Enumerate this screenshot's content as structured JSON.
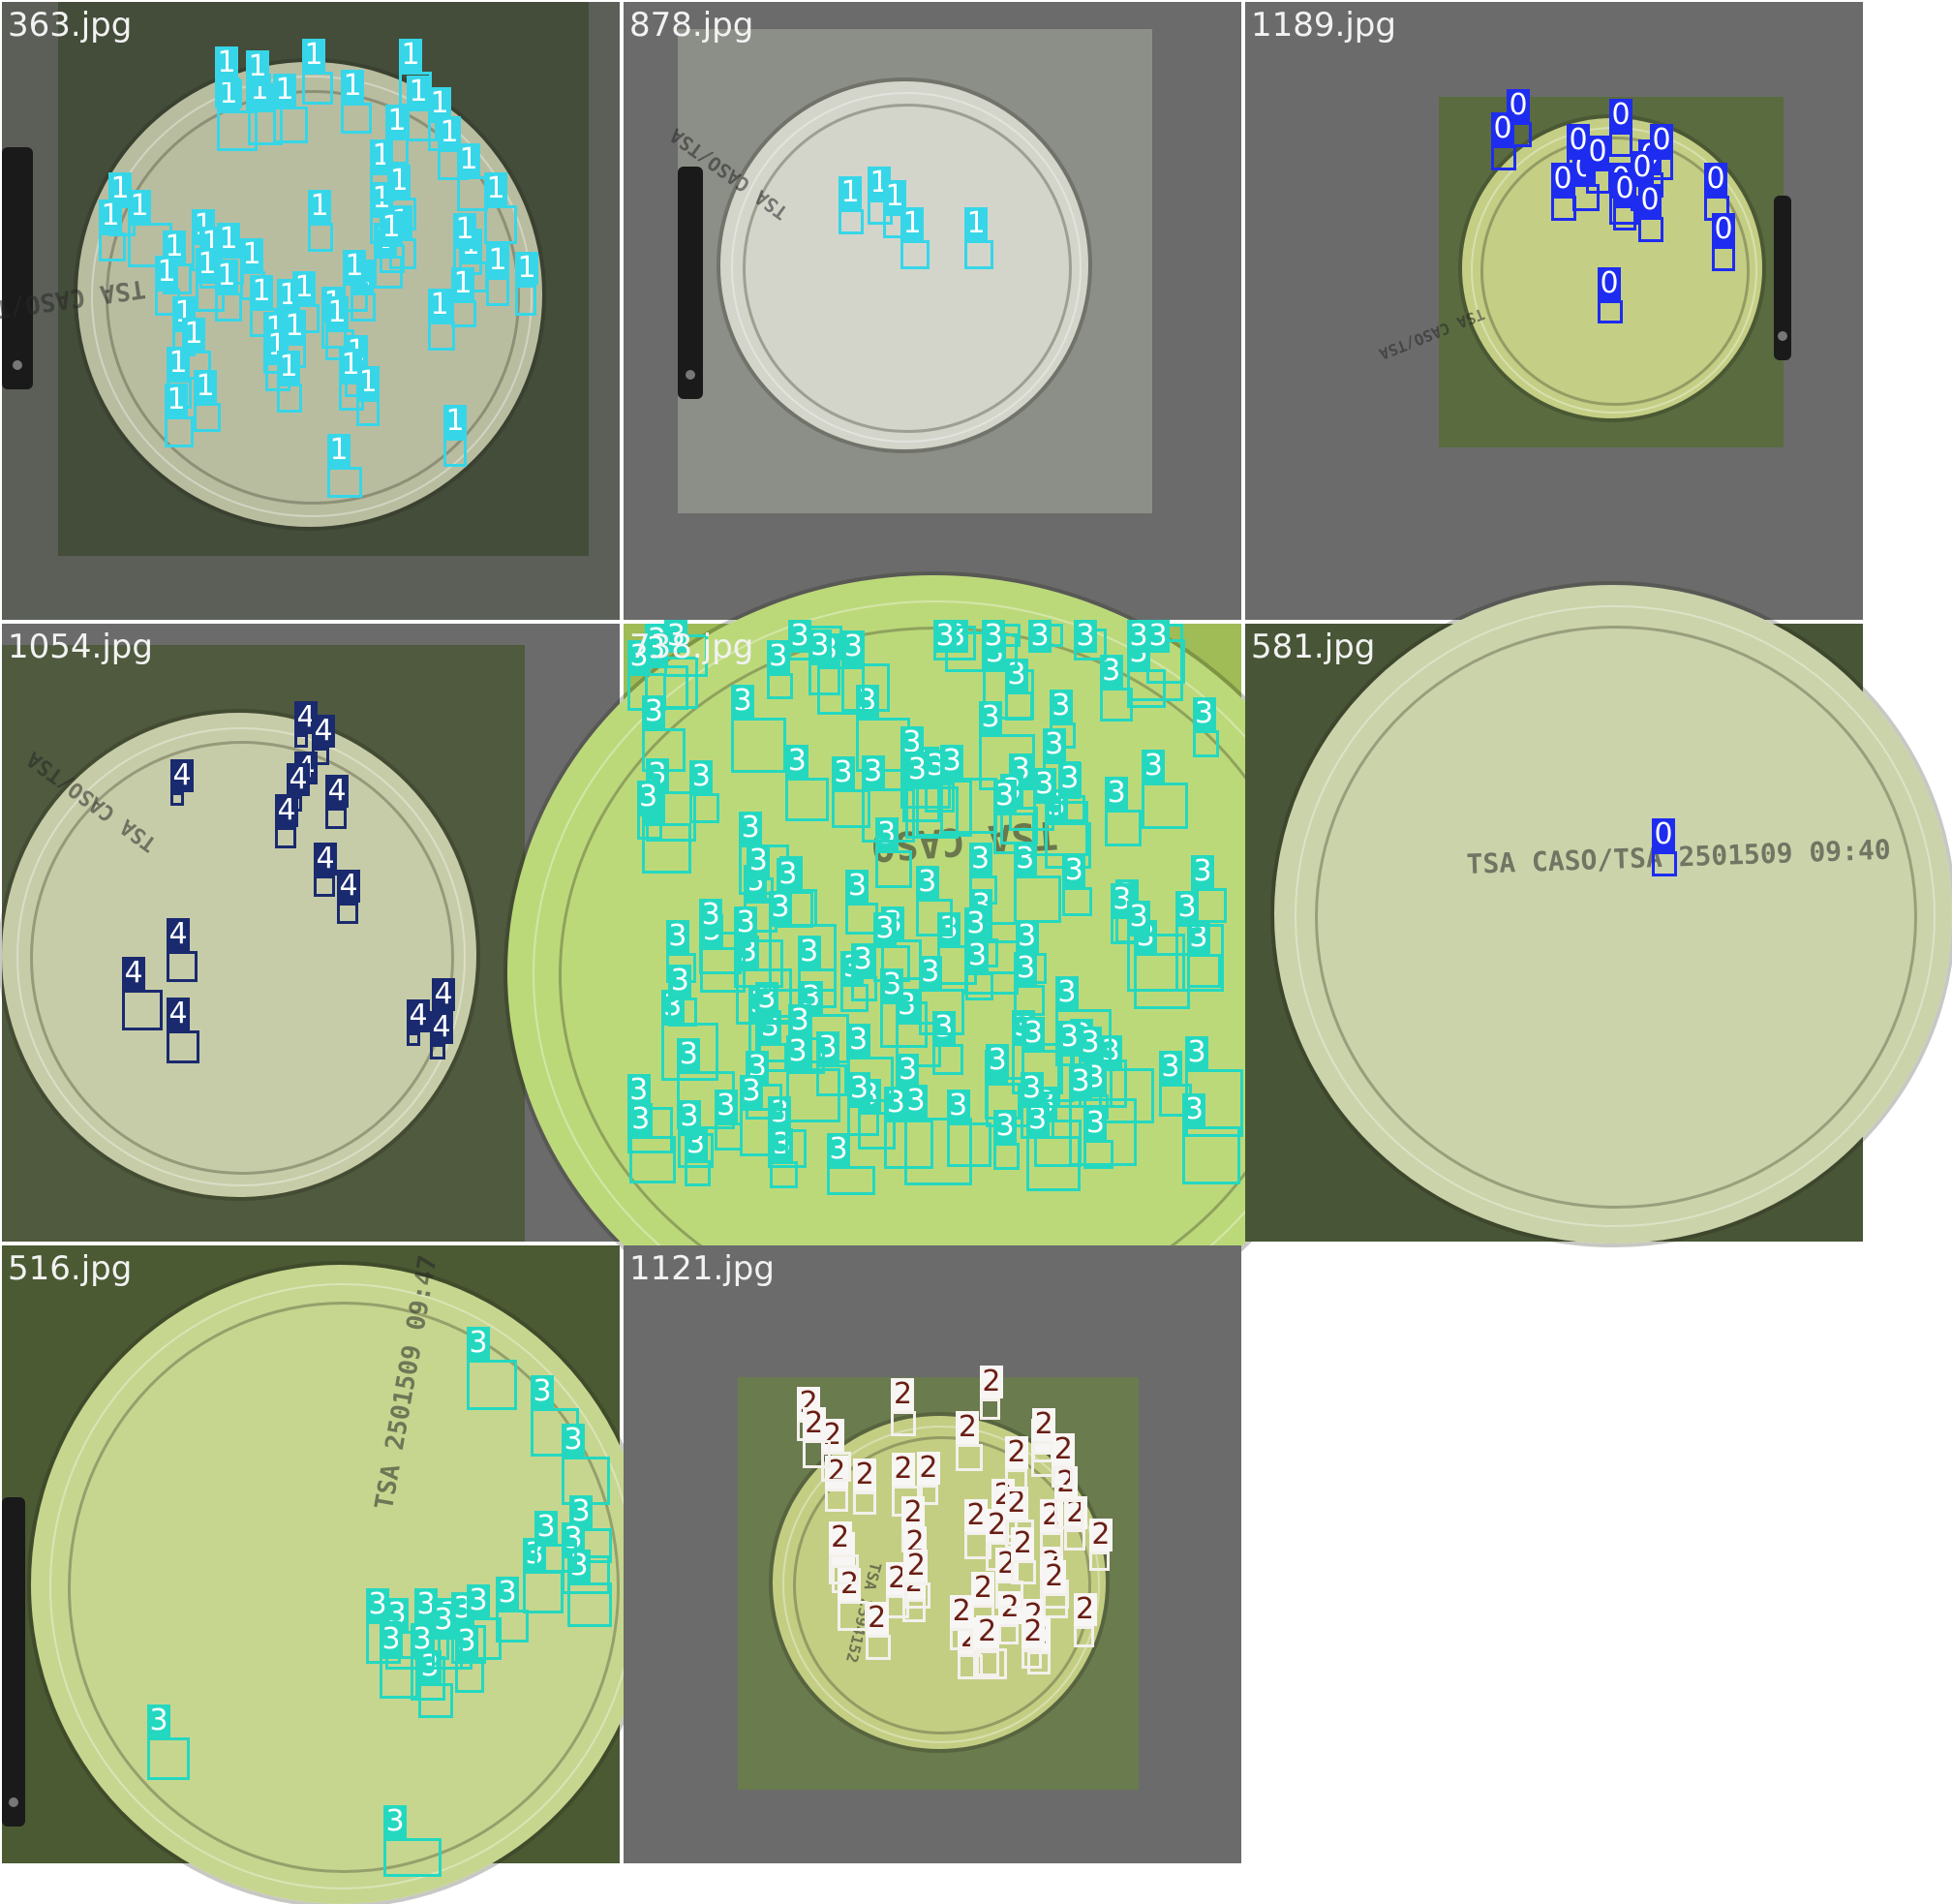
{
  "tiles": [
    {
      "caption": "363.jpg",
      "class_label": "1",
      "colors": {
        "tile_bg": "#5b5f58",
        "photo_bg": "#434d3a",
        "plate_fill": "#a7ab8a",
        "plate_inner": "#b9bda0",
        "box": "#36d6e8",
        "label_bg": "#36d6e8",
        "label_text": "#ffffff"
      },
      "stamp_text": "TSA CASO/TSA",
      "boxes_count": 60
    },
    {
      "caption": "878.jpg",
      "class_label": "1",
      "colors": {
        "tile_bg": "#6b6b6b",
        "photo_bg": "#8c8f88",
        "plate_fill": "#c9cbc0",
        "plate_inner": "#d3d5cb",
        "box": "#36d6e8",
        "label_bg": "#36d6e8",
        "label_text": "#ffffff"
      },
      "stamp_text": "TSA CASO/TSA",
      "boxes_count": 5
    },
    {
      "caption": "1189.jpg",
      "class_label": "0",
      "colors": {
        "tile_bg": "#6b6b6b",
        "photo_bg": "#596b3f",
        "plate_fill": "#b4c06c",
        "plate_inner": "#c4cf85",
        "box": "#1e2cf0",
        "label_bg": "#1e2cf0",
        "label_text": "#ffffff"
      },
      "stamp_text": "TSA CASO/TSA",
      "boxes_count": 16
    },
    {
      "caption": "1054.jpg",
      "class_label": "4",
      "colors": {
        "tile_bg": "#6b6b6b",
        "photo_bg": "#4f5a3e",
        "plate_fill": "#b9bf96",
        "plate_inner": "#c7cca8",
        "box": "#1a2a6e",
        "label_bg": "#1a2a6e",
        "label_text": "#ffffff"
      },
      "stamp_text": "TSA CASO/TSA",
      "boxes_count": 15
    },
    {
      "caption": "738.jpg",
      "class_label": "3",
      "colors": {
        "tile_bg": "#9fbc56",
        "photo_bg": "#9fbc56",
        "plate_fill": "#b5d46c",
        "plate_inner": "#bcd97a",
        "box": "#24d8c0",
        "label_bg": "#24d8c0",
        "label_text": "#ffffff"
      },
      "stamp_text": "TSA CASO",
      "boxes_count": 140
    },
    {
      "caption": "581.jpg",
      "class_label": "0",
      "colors": {
        "tile_bg": "#485536",
        "photo_bg": "#485536",
        "plate_fill": "#c2cb9b",
        "plate_inner": "#cbd3aa",
        "box": "#1e2cf0",
        "label_bg": "#1e2cf0",
        "label_text": "#ffffff"
      },
      "stamp_text": "TSA CASO/TSA 2501509 09:40",
      "boxes_count": 1
    },
    {
      "caption": "516.jpg",
      "class_label": "3",
      "colors": {
        "tile_bg": "#4b5a33",
        "photo_bg": "#4b5a33",
        "plate_fill": "#bfd083",
        "plate_inner": "#c6d68f",
        "box": "#24d8c0",
        "label_bg": "#24d8c0",
        "label_text": "#ffffff"
      },
      "stamp_text": "TSA 2501509 09:47",
      "boxes_count": 22
    },
    {
      "caption": "1121.jpg",
      "class_label": "2",
      "colors": {
        "tile_bg": "#6b6b6b",
        "photo_bg": "#6a7b4e",
        "plate_fill": "#b8c46f",
        "plate_inner": "#c3ce83",
        "box": "#f4f0ec",
        "label_bg": "#f8f6f4",
        "label_text": "#6a1e14"
      },
      "stamp_text": "TSA 2594152",
      "boxes_count": 45
    }
  ]
}
